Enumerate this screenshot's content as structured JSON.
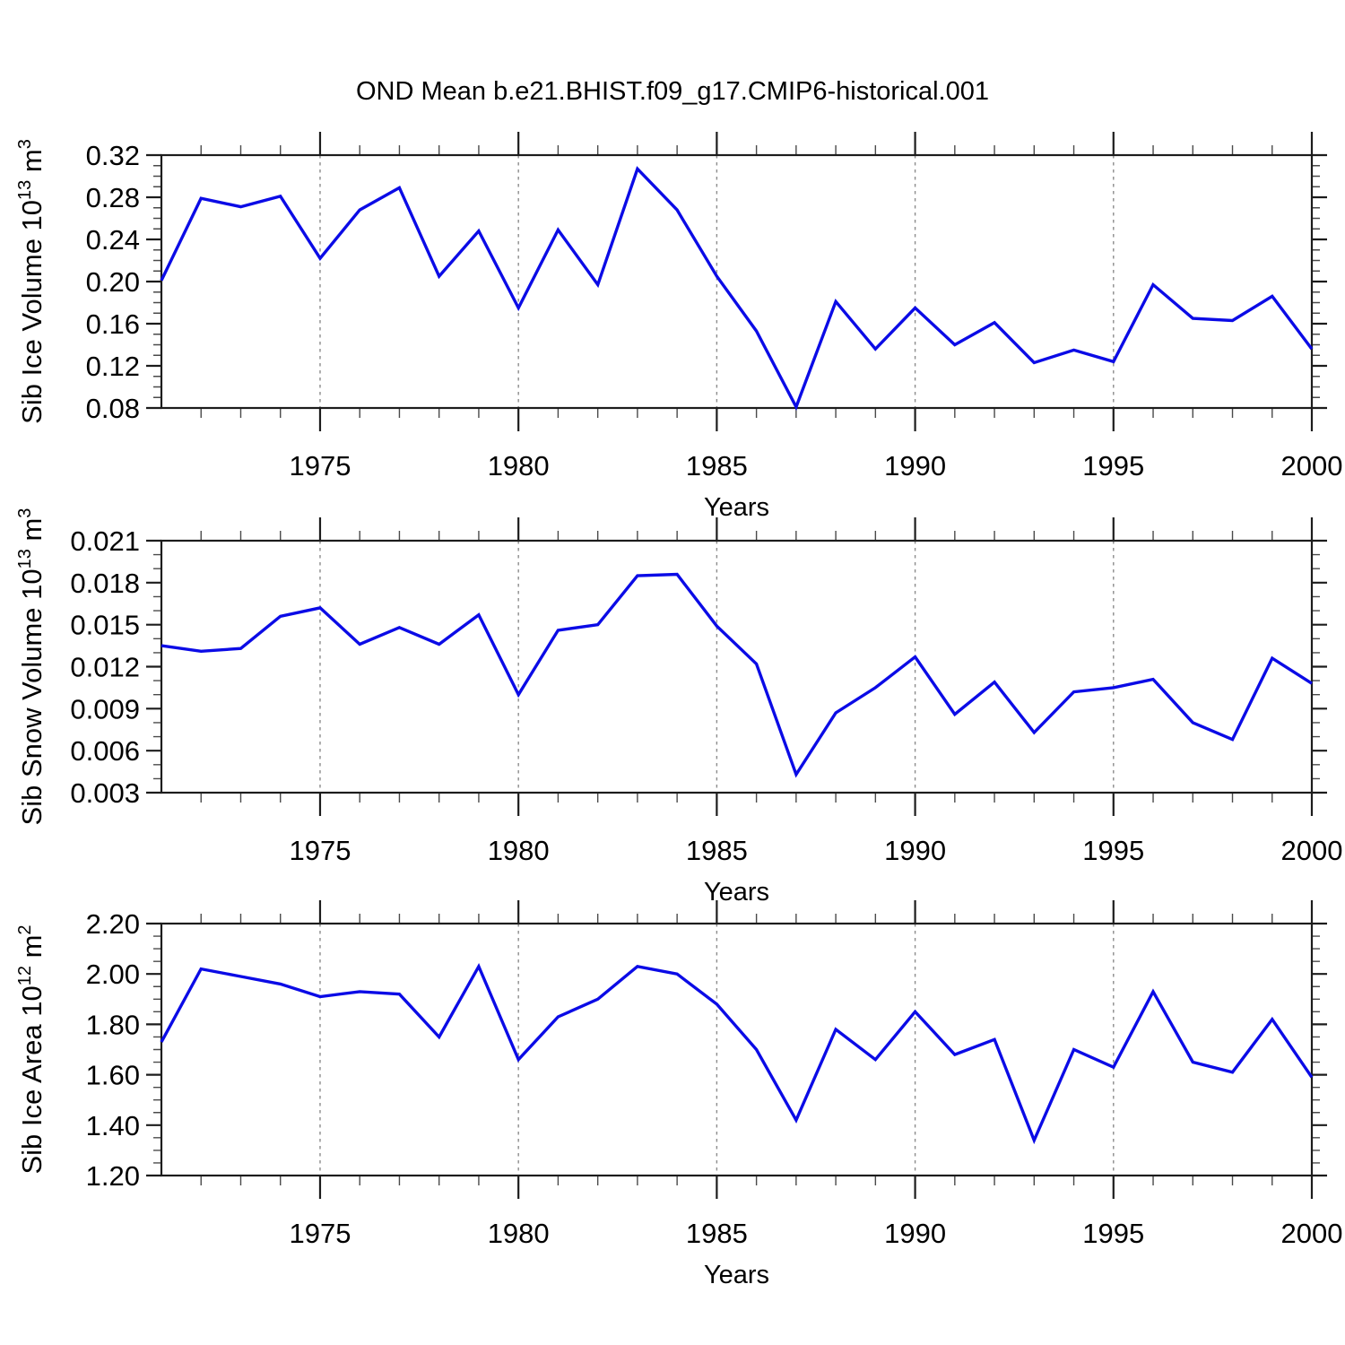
{
  "title": "OND Mean b.e21.BHIST.f09_g17.CMIP6-historical.001",
  "styles": {
    "line_color": "#0b0be6",
    "frame_color": "#1c1c1c",
    "minor_tick_color": "#4a4a4a",
    "grid_color": "#8c8c8c",
    "text_color": "#000000",
    "background": "#ffffff"
  },
  "x_axis": {
    "label": "Years",
    "years": [
      1971,
      1972,
      1973,
      1974,
      1975,
      1976,
      1977,
      1978,
      1979,
      1980,
      1981,
      1982,
      1983,
      1984,
      1985,
      1986,
      1987,
      1988,
      1989,
      1990,
      1991,
      1992,
      1993,
      1994,
      1995,
      1996,
      1997,
      1998,
      1999,
      2000
    ],
    "major_tick_years": [
      1975,
      1980,
      1985,
      1990,
      1995,
      2000
    ],
    "major_tick_labels": [
      "1975",
      "1980",
      "1985",
      "1990",
      "1995",
      "2000"
    ],
    "grid_years": [
      1975,
      1980,
      1985,
      1990,
      1995
    ]
  },
  "chart_data": [
    {
      "type": "line",
      "ylabel": "Sib Ice Volume 10^13 m^3",
      "ylabel_parts": [
        {
          "t": "Sib Ice Volume 10"
        },
        {
          "t": "13",
          "sup": true
        },
        {
          "t": " m"
        },
        {
          "t": "3",
          "sup": true
        }
      ],
      "xlabel": "Years",
      "ylim": [
        0.08,
        0.32
      ],
      "ytick_major": [
        0.08,
        0.12,
        0.16,
        0.2,
        0.24,
        0.28,
        0.32
      ],
      "ytick_labels": [
        "0.08",
        "0.12",
        "0.16",
        "0.20",
        "0.24",
        "0.28",
        "0.32"
      ],
      "ytick_minor_step": 0.01,
      "grid": "vertical-dashed",
      "legend": null,
      "values": [
        0.201,
        0.279,
        0.271,
        0.281,
        0.222,
        0.268,
        0.289,
        0.205,
        0.248,
        0.175,
        0.249,
        0.197,
        0.307,
        0.268,
        0.205,
        0.153,
        0.081,
        0.181,
        0.136,
        0.175,
        0.14,
        0.161,
        0.123,
        0.135,
        0.124,
        0.197,
        0.165,
        0.163,
        0.186,
        0.136
      ]
    },
    {
      "type": "line",
      "ylabel": "Sib Snow Volume 10^13 m^3",
      "ylabel_parts": [
        {
          "t": "Sib Snow Volume 10"
        },
        {
          "t": "13",
          "sup": true
        },
        {
          "t": " m"
        },
        {
          "t": "3",
          "sup": true
        }
      ],
      "xlabel": "Years",
      "ylim": [
        0.003,
        0.021
      ],
      "ytick_major": [
        0.003,
        0.006,
        0.009,
        0.012,
        0.015,
        0.018,
        0.021
      ],
      "ytick_labels": [
        "0.003",
        "0.006",
        "0.009",
        "0.012",
        "0.015",
        "0.018",
        "0.021"
      ],
      "ytick_minor_step": 0.001,
      "grid": "vertical-dashed",
      "legend": null,
      "values": [
        0.0135,
        0.0131,
        0.0133,
        0.0156,
        0.0162,
        0.0136,
        0.0148,
        0.0136,
        0.0157,
        0.01,
        0.0146,
        0.015,
        0.0185,
        0.0186,
        0.0149,
        0.0122,
        0.0043,
        0.0087,
        0.0105,
        0.0127,
        0.0086,
        0.0109,
        0.0073,
        0.0102,
        0.0105,
        0.0111,
        0.008,
        0.0068,
        0.0126,
        0.0108
      ]
    },
    {
      "type": "line",
      "ylabel": "Sib Ice Area 10^12 m^2",
      "ylabel_parts": [
        {
          "t": "Sib Ice Area 10"
        },
        {
          "t": "12",
          "sup": true
        },
        {
          "t": " m"
        },
        {
          "t": "2",
          "sup": true
        }
      ],
      "xlabel": "Years",
      "ylim": [
        1.2,
        2.2
      ],
      "ytick_major": [
        1.2,
        1.4,
        1.6,
        1.8,
        2.0,
        2.2
      ],
      "ytick_labels": [
        "1.20",
        "1.40",
        "1.60",
        "1.80",
        "2.00",
        "2.20"
      ],
      "ytick_minor_step": 0.05,
      "grid": "vertical-dashed",
      "legend": null,
      "values": [
        1.73,
        2.02,
        1.99,
        1.96,
        1.91,
        1.93,
        1.92,
        1.75,
        2.03,
        1.66,
        1.83,
        1.9,
        2.03,
        2.0,
        1.88,
        1.7,
        1.42,
        1.78,
        1.66,
        1.85,
        1.68,
        1.74,
        1.34,
        1.7,
        1.63,
        1.93,
        1.65,
        1.61,
        1.82,
        1.59
      ]
    }
  ]
}
